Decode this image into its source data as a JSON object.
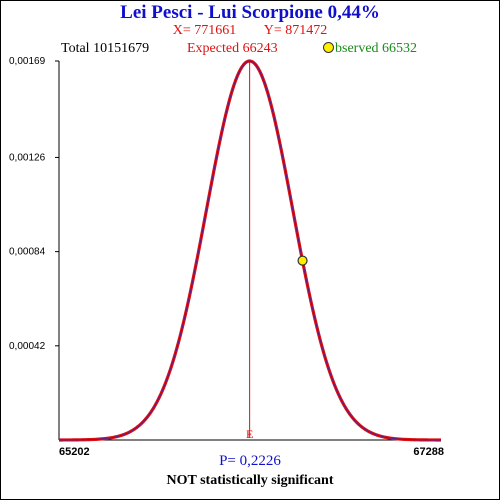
{
  "title": "Lei Pesci - Lui Scorpione  0,44%",
  "x_label": "X= 771661",
  "y_label": "Y= 871472",
  "total_text": "Total  10151679",
  "expected_text": "Expected  66243",
  "observed_text": "bserved  66532",
  "p_value_text": "P= 0,2226",
  "significance_text": "NOT statistically significant",
  "colors": {
    "title": "#1010cc",
    "curve": "#dd1111",
    "curve_core": "#5a1a8a",
    "observed_marker": "#ffee00"
  },
  "chart_data": {
    "type": "line",
    "distribution": "normal",
    "xlim": [
      65202,
      67288
    ],
    "ylim": [
      0,
      0.00169
    ],
    "x_tick_labels": [
      "65202",
      "67288"
    ],
    "y_tick_labels": [
      "0,00169",
      "0,00126",
      "0,00084",
      "0,00042"
    ],
    "y_tick_values": [
      0.00169,
      0.00126,
      0.00084,
      0.00042
    ],
    "mean": 66243,
    "peak": 0.00169,
    "sd": 236,
    "expected": {
      "x": 66243,
      "label": "E"
    },
    "observed": {
      "x": 66532,
      "y": 0.0008
    }
  }
}
